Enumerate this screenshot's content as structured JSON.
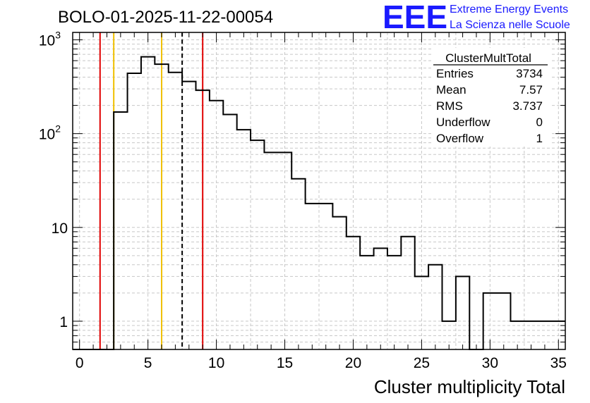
{
  "title": "BOLO-01-2025-11-22-00054",
  "logo": {
    "mark": "EEE",
    "line1": "Extreme Energy Events",
    "line2": "La Scienza nelle Scuole",
    "color": "#1a1aff"
  },
  "stats": {
    "name": "ClusterMultTotal",
    "rows": [
      {
        "label": "Entries",
        "value": "3734"
      },
      {
        "label": "Mean",
        "value": "7.57"
      },
      {
        "label": "RMS",
        "value": "3.737"
      },
      {
        "label": "Underflow",
        "value": "0"
      },
      {
        "label": "Overflow",
        "value": "1"
      }
    ]
  },
  "chart_data": {
    "type": "bar",
    "xlabel": "Cluster multiplicity Total",
    "ylabel": "",
    "xlim": [
      -0.5,
      35.5
    ],
    "ylim": [
      0.5,
      1200
    ],
    "yscale": "log",
    "grid": true,
    "bin_width": 1,
    "x_ticks": [
      0,
      5,
      10,
      15,
      20,
      25,
      30,
      35
    ],
    "y_ticks": [
      {
        "value": 1,
        "label": "1"
      },
      {
        "value": 10,
        "label": "10"
      },
      {
        "value": 100,
        "label": "10",
        "sup": "2"
      },
      {
        "value": 1000,
        "label": "10",
        "sup": "3"
      }
    ],
    "bins": [
      {
        "x": 0,
        "y": 0
      },
      {
        "x": 1,
        "y": 0
      },
      {
        "x": 2,
        "y": 0
      },
      {
        "x": 3,
        "y": 170
      },
      {
        "x": 4,
        "y": 440
      },
      {
        "x": 5,
        "y": 660
      },
      {
        "x": 6,
        "y": 550
      },
      {
        "x": 7,
        "y": 450
      },
      {
        "x": 8,
        "y": 360
      },
      {
        "x": 9,
        "y": 290
      },
      {
        "x": 10,
        "y": 225
      },
      {
        "x": 11,
        "y": 160
      },
      {
        "x": 12,
        "y": 110
      },
      {
        "x": 13,
        "y": 85
      },
      {
        "x": 14,
        "y": 63
      },
      {
        "x": 15,
        "y": 63
      },
      {
        "x": 16,
        "y": 33
      },
      {
        "x": 17,
        "y": 18
      },
      {
        "x": 18,
        "y": 18
      },
      {
        "x": 19,
        "y": 13
      },
      {
        "x": 20,
        "y": 8
      },
      {
        "x": 21,
        "y": 5
      },
      {
        "x": 22,
        "y": 6
      },
      {
        "x": 23,
        "y": 5
      },
      {
        "x": 24,
        "y": 8
      },
      {
        "x": 25,
        "y": 3
      },
      {
        "x": 26,
        "y": 4
      },
      {
        "x": 27,
        "y": 1
      },
      {
        "x": 28,
        "y": 3
      },
      {
        "x": 29,
        "y": 0
      },
      {
        "x": 30,
        "y": 2
      },
      {
        "x": 31,
        "y": 2
      },
      {
        "x": 32,
        "y": 1
      },
      {
        "x": 33,
        "y": 1
      },
      {
        "x": 34,
        "y": 1
      },
      {
        "x": 35,
        "y": 1
      }
    ],
    "markers": [
      {
        "x": 1.5,
        "color": "#e00000",
        "style": "solid"
      },
      {
        "x": 9.0,
        "color": "#e00000",
        "style": "solid"
      },
      {
        "x": 2.5,
        "color": "#f0c000",
        "style": "solid"
      },
      {
        "x": 6.0,
        "color": "#f0c000",
        "style": "solid"
      },
      {
        "x": 7.5,
        "color": "#000000",
        "style": "dashed"
      }
    ]
  }
}
